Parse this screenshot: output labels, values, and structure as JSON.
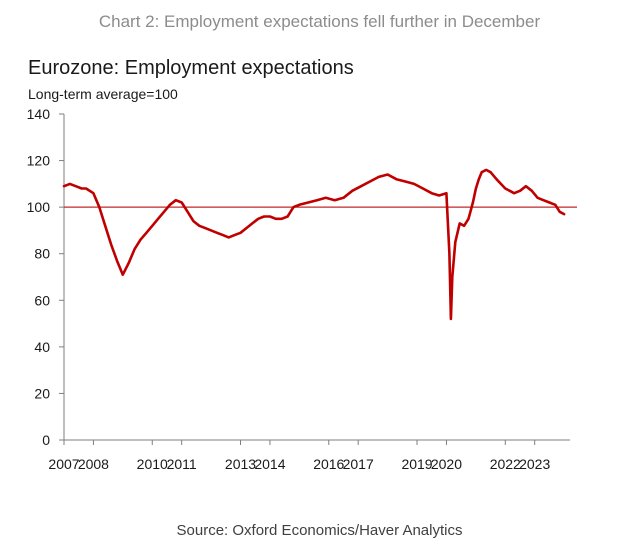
{
  "caption": "Chart 2: Employment expectations fell further in December",
  "source": "Source: Oxford Economics/Haver Analytics",
  "chart_data": {
    "type": "line",
    "title": "Eurozone: Employment expectations",
    "subtitle": "Long-term average=100",
    "xlabel": "",
    "ylabel": "",
    "ylim": [
      0,
      140
    ],
    "xlim": [
      2007,
      2024.2
    ],
    "yticks": [
      "0",
      "20",
      "40",
      "60",
      "80",
      "100",
      "120",
      "140"
    ],
    "xticks": [
      "2007",
      "2008",
      "2010",
      "2011",
      "2013",
      "2014",
      "2016",
      "2017",
      "2019",
      "2020",
      "2022",
      "2023"
    ],
    "xtick_positions": [
      2007,
      2008,
      2010,
      2011,
      2013,
      2014,
      2016,
      2017,
      2019,
      2020,
      2022,
      2023
    ],
    "grid": false,
    "line_color": "#c00000",
    "reference_line": {
      "value": 100,
      "color": "#c0282d"
    },
    "series": [
      {
        "name": "Employment expectations",
        "x": [
          2007.0,
          2007.2,
          2007.4,
          2007.6,
          2007.75,
          2008.0,
          2008.2,
          2008.4,
          2008.6,
          2008.8,
          2009.0,
          2009.2,
          2009.4,
          2009.6,
          2009.8,
          2010.0,
          2010.2,
          2010.4,
          2010.6,
          2010.8,
          2011.0,
          2011.2,
          2011.4,
          2011.6,
          2011.8,
          2012.0,
          2012.2,
          2012.4,
          2012.6,
          2012.8,
          2013.0,
          2013.2,
          2013.4,
          2013.6,
          2013.8,
          2014.0,
          2014.2,
          2014.4,
          2014.6,
          2014.8,
          2015.0,
          2015.3,
          2015.6,
          2015.9,
          2016.2,
          2016.5,
          2016.8,
          2017.1,
          2017.4,
          2017.7,
          2018.0,
          2018.3,
          2018.6,
          2018.9,
          2019.2,
          2019.5,
          2019.75,
          2020.0,
          2020.1,
          2020.15,
          2020.2,
          2020.3,
          2020.45,
          2020.6,
          2020.75,
          2020.9,
          2021.0,
          2021.1,
          2021.2,
          2021.35,
          2021.5,
          2021.7,
          2021.85,
          2022.0,
          2022.15,
          2022.3,
          2022.5,
          2022.7,
          2022.9,
          2023.1,
          2023.3,
          2023.5,
          2023.7,
          2023.85,
          2024.0
        ],
        "values": [
          109,
          110,
          109,
          108,
          108,
          106,
          100,
          92,
          84,
          77,
          71,
          76,
          82,
          86,
          89,
          92,
          95,
          98,
          101,
          103,
          102,
          98,
          94,
          92,
          91,
          90,
          89,
          88,
          87,
          88,
          89,
          91,
          93,
          95,
          96,
          96,
          95,
          95,
          96,
          100,
          101,
          102,
          103,
          104,
          103,
          104,
          107,
          109,
          111,
          113,
          114,
          112,
          111,
          110,
          108,
          106,
          105,
          106,
          80,
          52,
          70,
          85,
          93,
          92,
          95,
          102,
          108,
          112,
          115,
          116,
          115,
          112,
          110,
          108,
          107,
          106,
          107,
          109,
          107,
          104,
          103,
          102,
          101,
          98,
          97
        ]
      }
    ]
  }
}
